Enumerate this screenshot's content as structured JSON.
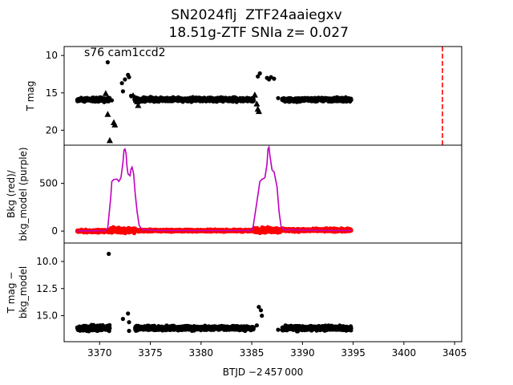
{
  "title": {
    "line1": "SN2024flj  ZTF24aaiegxv",
    "line2": " 18.51g-ZTF SNIa z= 0.027"
  },
  "chart_data": {
    "type": "scatter",
    "shared_x": {
      "label": "BTJD −2 457 000",
      "lim": [
        3366.5,
        3405.7
      ],
      "ticks": [
        3370,
        3375,
        3380,
        3385,
        3390,
        3395,
        3400,
        3405
      ]
    },
    "panels": [
      {
        "id": "top",
        "ylabel": "T mag",
        "ylim": [
          8.8,
          22.0
        ],
        "y_inverted": true,
        "yticks": [
          10,
          15,
          20
        ],
        "annotation": "s76 cam1ccd2",
        "vline": {
          "x": 3403.8,
          "color": "#ff0000",
          "style": "dashed"
        },
        "series": [
          {
            "marker": "circle",
            "color": "#000000",
            "segments": [
              {
                "x_range": [
                  3367.8,
                  3371.0
                ],
                "y_center": 15.9,
                "scatter": 0.25
              },
              {
                "x_range": [
                  3373.5,
                  3385.2
                ],
                "y_center": 15.9,
                "scatter": 0.25
              },
              {
                "x_range": [
                  3388.0,
                  3394.8
                ],
                "y_center": 15.9,
                "scatter": 0.25
              }
            ],
            "points": [
              [
                3370.8,
                10.9
              ],
              [
                3371.2,
                16.0
              ],
              [
                3372.2,
                13.7
              ],
              [
                3372.5,
                13.2
              ],
              [
                3372.8,
                12.6
              ],
              [
                3372.9,
                12.9
              ],
              [
                3372.3,
                14.8
              ],
              [
                3373.1,
                15.4
              ],
              [
                3385.6,
                12.8
              ],
              [
                3385.8,
                12.4
              ],
              [
                3386.5,
                13.0
              ],
              [
                3386.7,
                13.2
              ],
              [
                3386.9,
                12.9
              ],
              [
                3387.2,
                13.1
              ],
              [
                3387.6,
                15.7
              ]
            ]
          },
          {
            "marker": "triangle",
            "color": "#000000",
            "points": [
              [
                3370.6,
                15.1
              ],
              [
                3370.8,
                17.9
              ],
              [
                3371.0,
                21.4
              ],
              [
                3371.4,
                19.0
              ],
              [
                3371.5,
                19.3
              ],
              [
                3373.3,
                15.4
              ],
              [
                3373.5,
                15.7
              ],
              [
                3373.6,
                16.0
              ],
              [
                3373.7,
                16.2
              ],
              [
                3373.8,
                16.7
              ],
              [
                3385.3,
                15.3
              ],
              [
                3385.5,
                16.5
              ],
              [
                3385.6,
                17.2
              ],
              [
                3385.7,
                17.5
              ]
            ]
          }
        ]
      },
      {
        "id": "middle",
        "ylabel": "Bkg (red)/\nbkg_model (purple)",
        "ylim": [
          -125,
          900
        ],
        "yticks": [
          0,
          500
        ],
        "series": [
          {
            "name": "bkg",
            "marker": "circle",
            "color": "#ff0000",
            "segments": [
              {
                "x_range": [
                  3367.8,
                  3371.0
                ],
                "y_center": 0,
                "scatter": 12
              },
              {
                "x_range": [
                  3371.0,
                  3373.5
                ],
                "y_center": 10,
                "scatter": 25
              },
              {
                "x_range": [
                  3373.5,
                  3385.2
                ],
                "y_center": 5,
                "scatter": 10
              },
              {
                "x_range": [
                  3385.2,
                  3387.8
                ],
                "y_center": 10,
                "scatter": 25
              },
              {
                "x_range": [
                  3387.8,
                  3394.8
                ],
                "y_center": 10,
                "scatter": 15
              }
            ]
          },
          {
            "name": "bkg_model",
            "marker": "line",
            "color": "#bf00bf",
            "points": [
              [
                3367.8,
                0
              ],
              [
                3370.5,
                5
              ],
              [
                3370.8,
                30
              ],
              [
                3371.1,
                360
              ],
              [
                3371.2,
                520
              ],
              [
                3371.4,
                540
              ],
              [
                3371.7,
                545
              ],
              [
                3371.9,
                520
              ],
              [
                3372.1,
                560
              ],
              [
                3372.3,
                720
              ],
              [
                3372.4,
                850
              ],
              [
                3372.5,
                860
              ],
              [
                3372.6,
                820
              ],
              [
                3372.7,
                680
              ],
              [
                3372.8,
                600
              ],
              [
                3373.0,
                580
              ],
              [
                3373.1,
                650
              ],
              [
                3373.2,
                670
              ],
              [
                3373.35,
                600
              ],
              [
                3373.5,
                400
              ],
              [
                3373.7,
                200
              ],
              [
                3373.9,
                60
              ],
              [
                3374.2,
                15
              ],
              [
                3376.0,
                5
              ],
              [
                3380.0,
                5
              ],
              [
                3384.8,
                5
              ],
              [
                3385.1,
                20
              ],
              [
                3385.5,
                300
              ],
              [
                3385.8,
                520
              ],
              [
                3386.0,
                540
              ],
              [
                3386.3,
                560
              ],
              [
                3386.5,
                700
              ],
              [
                3386.6,
                860
              ],
              [
                3386.7,
                880
              ],
              [
                3386.8,
                780
              ],
              [
                3387.0,
                640
              ],
              [
                3387.2,
                620
              ],
              [
                3387.5,
                460
              ],
              [
                3387.7,
                200
              ],
              [
                3387.9,
                40
              ],
              [
                3388.2,
                15
              ],
              [
                3391.0,
                8
              ],
              [
                3394.8,
                5
              ]
            ]
          }
        ]
      },
      {
        "id": "bottom",
        "ylabel": "T mag −\nbkg_model",
        "ylim": [
          8.3,
          17.4
        ],
        "y_inverted": true,
        "yticks": [
          10.0,
          12.5,
          15.0
        ],
        "series": [
          {
            "marker": "circle",
            "color": "#000000",
            "segments": [
              {
                "x_range": [
                  3367.8,
                  3371.0
                ],
                "y_center": 16.15,
                "scatter": 0.25
              },
              {
                "x_range": [
                  3373.5,
                  3385.2
                ],
                "y_center": 16.15,
                "scatter": 0.2
              },
              {
                "x_range": [
                  3388.0,
                  3394.8
                ],
                "y_center": 16.15,
                "scatter": 0.22
              }
            ],
            "points": [
              [
                3370.9,
                9.3
              ],
              [
                3372.3,
                15.3
              ],
              [
                3372.8,
                14.8
              ],
              [
                3372.9,
                15.6
              ],
              [
                3372.9,
                16.4
              ],
              [
                3385.7,
                14.2
              ],
              [
                3385.9,
                14.5
              ],
              [
                3386.0,
                15.0
              ],
              [
                3385.5,
                15.9
              ],
              [
                3387.6,
                16.3
              ]
            ]
          }
        ]
      }
    ]
  }
}
